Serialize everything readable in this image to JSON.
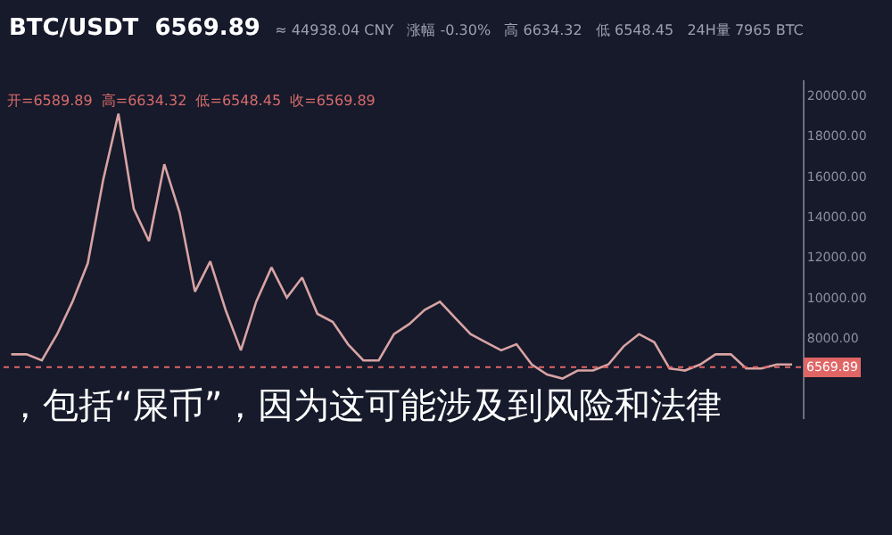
{
  "chart_data": {
    "type": "line",
    "title": "BTC/USDT  6569.89",
    "subtitle": "≈ 44938.04 CNY   涨幅 -0.30%   高 6634.32   低 6548.45   24H量 7965 BTC",
    "annotations": [
      "开=6589.89  高=6634.32  低=6548.45  收=6569.89",
      "，包括“屎币”，因为这可能涉及到风险和法律"
    ],
    "categories": [
      null,
      null,
      null,
      null,
      null,
      null,
      null,
      null,
      null,
      null,
      null,
      null,
      null,
      null,
      null,
      null,
      null,
      null,
      null,
      null,
      null,
      null,
      null,
      null,
      null,
      null,
      null,
      null,
      null,
      null,
      null,
      null,
      null,
      null,
      null,
      null,
      null,
      null,
      null,
      null,
      null,
      null,
      null,
      null,
      null,
      null,
      null,
      null,
      null,
      null,
      null,
      null
    ],
    "series": [
      {
        "color": "#d8a3a3",
        "values": [
          7200,
          7200,
          6900,
          8200,
          9800,
          11700,
          15800,
          19100,
          14400,
          12800,
          16600,
          14200,
          10300,
          11800,
          9400,
          7400,
          9800,
          11500,
          10000,
          11000,
          9200,
          8800,
          7700,
          6900,
          6900,
          8200,
          8700,
          9400,
          9800,
          9000,
          8200,
          7800,
          7400,
          7700,
          6700,
          6200,
          6000,
          6400,
          6400,
          6700,
          7600,
          8200,
          7800,
          6500,
          6400,
          6700,
          7200,
          7200,
          6500,
          6500,
          6700,
          6700
        ]
      }
    ],
    "ylim": [
      4000,
      20750
    ],
    "yticks": [
      {
        "value": 8000,
        "label": "8000.00"
      },
      {
        "value": 10000,
        "label": "10000.00"
      },
      {
        "value": 12000,
        "label": "12000.00"
      },
      {
        "value": 14000,
        "label": "14000.00"
      },
      {
        "value": 16000,
        "label": "16000.00"
      },
      {
        "value": 18000,
        "label": "18000.00"
      },
      {
        "value": 20000,
        "label": "20000.00"
      }
    ],
    "ref_lines": [
      {
        "axis": "y",
        "value": 6569.89,
        "label": "6569.89",
        "color": "#e06666",
        "line_style": "dotted"
      }
    ],
    "grid": false,
    "legend": false,
    "marker": "none",
    "line_style": "solid",
    "tick_labels": "y"
  }
}
